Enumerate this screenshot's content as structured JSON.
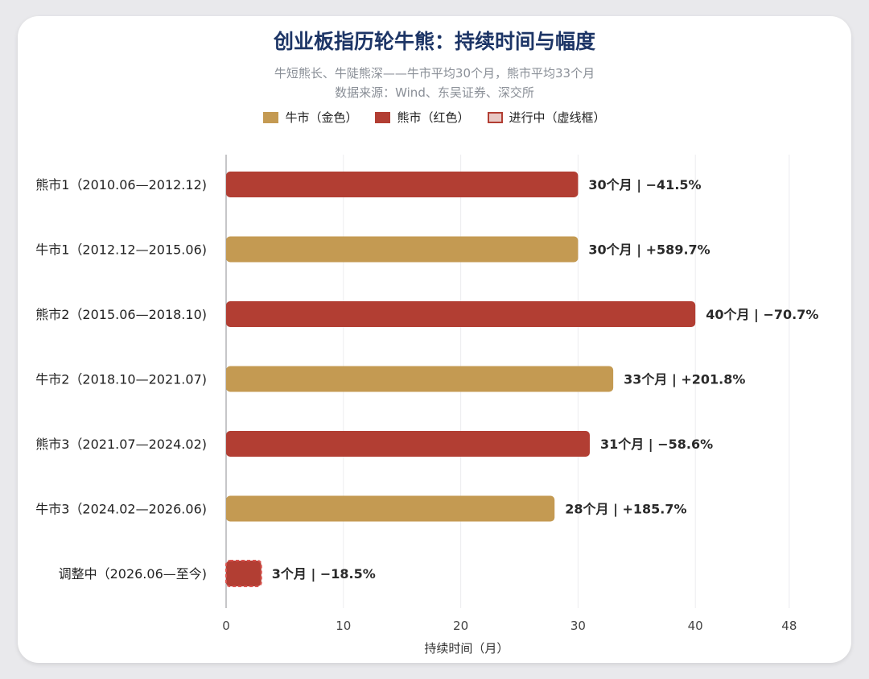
{
  "title": "创业板指历轮牛熊：持续时间与幅度",
  "subtitle_line1": "牛短熊长、牛陡熊深——牛市平均30个月，熊市平均33个月",
  "subtitle_line2": "数据来源：Wind、东吴证券、深交所",
  "legend": [
    {
      "label": "牛市（金色）",
      "color": "#c49a52",
      "style": "solid"
    },
    {
      "label": "熊市（红色）",
      "color": "#b23e33",
      "style": "solid"
    },
    {
      "label": "进行中（虚线框）",
      "color": "#e8c8c4",
      "style": "dashed-border"
    }
  ],
  "colors": {
    "bull": "#c49a52",
    "bear": "#b23e33",
    "ongoing": "#b23e33"
  },
  "chart_data": {
    "type": "bar",
    "orientation": "horizontal",
    "categories": [
      "熊市1（2010.06—2012.12)",
      "牛市1（2012.12—2015.06)",
      "熊市2（2015.06—2018.10)",
      "牛市2（2018.10—2021.07)",
      "熊市3（2021.07—2024.02)",
      "牛市3（2024.02—2026.06)",
      "调整中（2026.06—至今)"
    ],
    "values": [
      30,
      30,
      40,
      33,
      31,
      28,
      3
    ],
    "kinds": [
      "bear",
      "bull",
      "bear",
      "bull",
      "bear",
      "bull",
      "ongoing"
    ],
    "data_labels": [
      "30个月 | −41.5%",
      "30个月 | +589.7%",
      "40个月 | −70.7%",
      "33个月 | +201.8%",
      "31个月 | −58.6%",
      "28个月 | +185.7%",
      "3个月 | −18.5%"
    ],
    "xlabel": "持续时间（月）",
    "ylabel": "",
    "xlim": [
      0,
      48
    ],
    "xticks": [
      0,
      10,
      20,
      30,
      40,
      48
    ],
    "grid": "vertical"
  }
}
